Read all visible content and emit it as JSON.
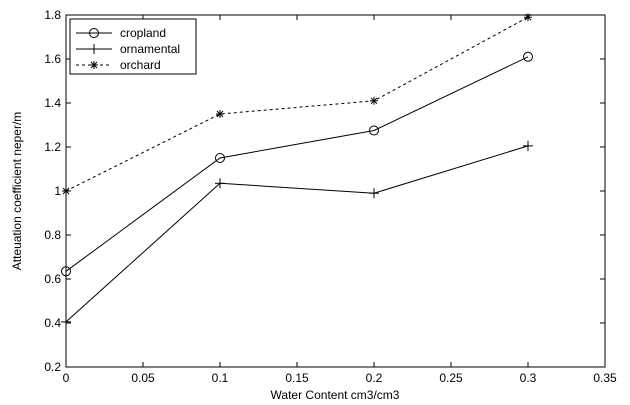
{
  "chart_data": {
    "type": "line",
    "xlabel": "Water Content cm3/cm3",
    "ylabel": "Atteuation coefficient neper/m",
    "xlim": [
      0,
      0.35
    ],
    "ylim": [
      0.2,
      1.8
    ],
    "x_ticks": [
      "0",
      "0.05",
      "0.1",
      "0.15",
      "0.2",
      "0.25",
      "0.3",
      "0.35"
    ],
    "y_ticks": [
      "0.2",
      "0.4",
      "0.6",
      "0.8",
      "1",
      "1.2",
      "1.4",
      "1.6",
      "1.8"
    ],
    "x_tick_values": [
      0,
      0.05,
      0.1,
      0.15,
      0.2,
      0.25,
      0.3,
      0.35
    ],
    "y_tick_values": [
      0.2,
      0.4,
      0.6,
      0.8,
      1.0,
      1.2,
      1.4,
      1.6,
      1.8
    ],
    "grid": false,
    "legend_position": "top-left",
    "x": [
      0,
      0.1,
      0.2,
      0.3
    ],
    "series": [
      {
        "name": "cropland",
        "values": [
          0.635,
          1.15,
          1.275,
          1.61
        ],
        "marker": "circle",
        "line": "solid",
        "color": "#000000"
      },
      {
        "name": "ornamental",
        "values": [
          0.405,
          1.035,
          0.99,
          1.205
        ],
        "marker": "plus",
        "line": "solid",
        "color": "#000000"
      },
      {
        "name": "orchard",
        "values": [
          1.0,
          1.35,
          1.41,
          1.79
        ],
        "marker": "star",
        "line": "dashed",
        "color": "#000000"
      }
    ]
  }
}
